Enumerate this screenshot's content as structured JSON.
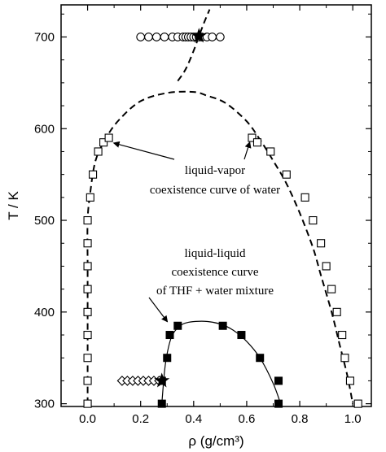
{
  "chart_data": {
    "type": "scatter",
    "xlabel": "ρ (g/cm³)",
    "ylabel": "T / K",
    "xlim": [
      -0.1,
      1.07
    ],
    "ylim": [
      297,
      735
    ],
    "x_ticks": [
      0.0,
      0.2,
      0.4,
      0.6,
      0.8,
      1.0
    ],
    "x_tick_labels": [
      "0.0",
      "0.2",
      "0.4",
      "0.6",
      "0.8",
      "1.0"
    ],
    "y_ticks": [
      300,
      400,
      500,
      600,
      700
    ],
    "y_tick_labels": [
      "300",
      "400",
      "500",
      "600",
      "700"
    ],
    "grid": false,
    "series": [
      {
        "marker": "open-square",
        "points": [
          [
            0.0,
            300
          ],
          [
            0.0,
            325
          ],
          [
            0.0,
            350
          ],
          [
            0.0,
            375
          ],
          [
            0.0,
            400
          ],
          [
            0.0,
            425
          ],
          [
            0.0,
            450
          ],
          [
            0.0,
            475
          ],
          [
            0.0,
            500
          ],
          [
            0.01,
            525
          ],
          [
            0.02,
            550
          ],
          [
            0.04,
            575
          ],
          [
            0.06,
            585
          ],
          [
            0.08,
            590
          ],
          [
            0.62,
            590
          ],
          [
            0.64,
            585
          ],
          [
            0.69,
            575
          ],
          [
            0.75,
            550
          ],
          [
            0.82,
            525
          ],
          [
            0.85,
            500
          ],
          [
            0.88,
            475
          ],
          [
            0.9,
            450
          ],
          [
            0.92,
            425
          ],
          [
            0.94,
            400
          ],
          [
            0.96,
            375
          ],
          [
            0.97,
            350
          ],
          [
            0.99,
            325
          ],
          [
            1.02,
            300
          ]
        ]
      },
      {
        "marker": "filled-square",
        "points": [
          [
            0.28,
            300
          ],
          [
            0.28,
            325
          ],
          [
            0.3,
            350
          ],
          [
            0.31,
            375
          ],
          [
            0.34,
            385
          ],
          [
            0.51,
            385
          ],
          [
            0.58,
            375
          ],
          [
            0.65,
            350
          ],
          [
            0.72,
            325
          ],
          [
            0.72,
            300
          ]
        ]
      },
      {
        "marker": "open-circle",
        "points": [
          [
            0.2,
            700
          ],
          [
            0.23,
            700
          ],
          [
            0.26,
            700
          ],
          [
            0.29,
            700
          ],
          [
            0.32,
            700
          ],
          [
            0.34,
            700
          ],
          [
            0.36,
            700
          ],
          [
            0.37,
            700
          ],
          [
            0.38,
            700
          ],
          [
            0.39,
            700
          ],
          [
            0.4,
            700
          ],
          [
            0.41,
            700
          ],
          [
            0.42,
            700
          ],
          [
            0.43,
            700
          ],
          [
            0.45,
            700
          ],
          [
            0.47,
            700
          ],
          [
            0.5,
            700
          ]
        ]
      },
      {
        "marker": "open-diamond",
        "points": [
          [
            0.13,
            325
          ],
          [
            0.15,
            325
          ],
          [
            0.17,
            325
          ],
          [
            0.19,
            325
          ],
          [
            0.21,
            325
          ],
          [
            0.23,
            325
          ],
          [
            0.25,
            325
          ],
          [
            0.27,
            325
          ]
        ]
      },
      {
        "marker": "star",
        "points": [
          [
            0.42,
            701
          ],
          [
            0.28,
            325
          ]
        ]
      }
    ],
    "curves": [
      {
        "style": "dashed",
        "points": [
          [
            0.0,
            300
          ],
          [
            0.0,
            350
          ],
          [
            0.0,
            400
          ],
          [
            0.0,
            450
          ],
          [
            0.0,
            500
          ],
          [
            0.01,
            530
          ],
          [
            0.03,
            565
          ],
          [
            0.07,
            590
          ],
          [
            0.12,
            610
          ],
          [
            0.2,
            630
          ],
          [
            0.3,
            639
          ],
          [
            0.4,
            640
          ],
          [
            0.45,
            636
          ],
          [
            0.52,
            628
          ],
          [
            0.6,
            608
          ],
          [
            0.65,
            588
          ],
          [
            0.7,
            565
          ],
          [
            0.75,
            540
          ],
          [
            0.8,
            508
          ],
          [
            0.85,
            470
          ],
          [
            0.88,
            440
          ],
          [
            0.92,
            400
          ],
          [
            0.95,
            365
          ],
          [
            0.98,
            330
          ],
          [
            1.0,
            300
          ]
        ]
      },
      {
        "style": "dashed",
        "points": [
          [
            0.34,
            652
          ],
          [
            0.37,
            665
          ],
          [
            0.4,
            685
          ],
          [
            0.42,
            701
          ],
          [
            0.44,
            716
          ],
          [
            0.46,
            730
          ]
        ]
      },
      {
        "style": "solid",
        "points": [
          [
            0.28,
            300
          ],
          [
            0.29,
            335
          ],
          [
            0.3,
            355
          ],
          [
            0.32,
            375
          ],
          [
            0.36,
            387
          ],
          [
            0.43,
            390
          ],
          [
            0.5,
            387
          ],
          [
            0.55,
            380
          ],
          [
            0.6,
            368
          ],
          [
            0.65,
            350
          ],
          [
            0.7,
            322
          ],
          [
            0.73,
            298
          ]
        ]
      }
    ],
    "annotations": [
      {
        "lines": [
          "liquid-vapor",
          "coexistence curve of water"
        ],
        "point_to": [
          [
            0.08,
            587
          ],
          [
            0.63,
            588
          ]
        ]
      },
      {
        "lines": [
          "liquid-liquid",
          "coexistence curve",
          "of THF + water mixture"
        ],
        "point_to": [
          [
            0.31,
            385
          ]
        ]
      }
    ]
  }
}
